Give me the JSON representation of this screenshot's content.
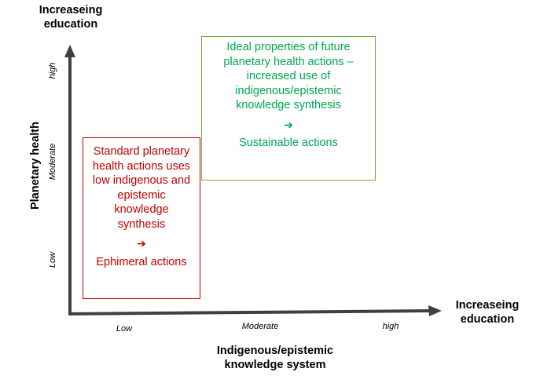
{
  "y_axis_top_label": "Increaseing education",
  "y_axis_label": "Planetary health",
  "x_axis_right_label": "Increaseing education",
  "x_axis_label": "Indigenous/epistemic knowledge system",
  "y_ticks": [
    "high",
    "Moderate",
    "Low"
  ],
  "x_ticks": [
    "Low",
    "Moderate",
    "high"
  ],
  "red_box": {
    "text": "Standard planetary health actions uses low indigenous and epistemic knowledge synthesis",
    "arrow": "➔",
    "outcome": "Ephimeral actions"
  },
  "green_box": {
    "text": "Ideal properties of future planetary health actions – increased use of indigenous/epistemic knowledge synthesis",
    "arrow": "➔",
    "outcome": "Sustainable actions"
  },
  "colors": {
    "axis": "#404040",
    "red": "#c00000",
    "green_border": "#70ad47",
    "green_text": "#00a651"
  }
}
